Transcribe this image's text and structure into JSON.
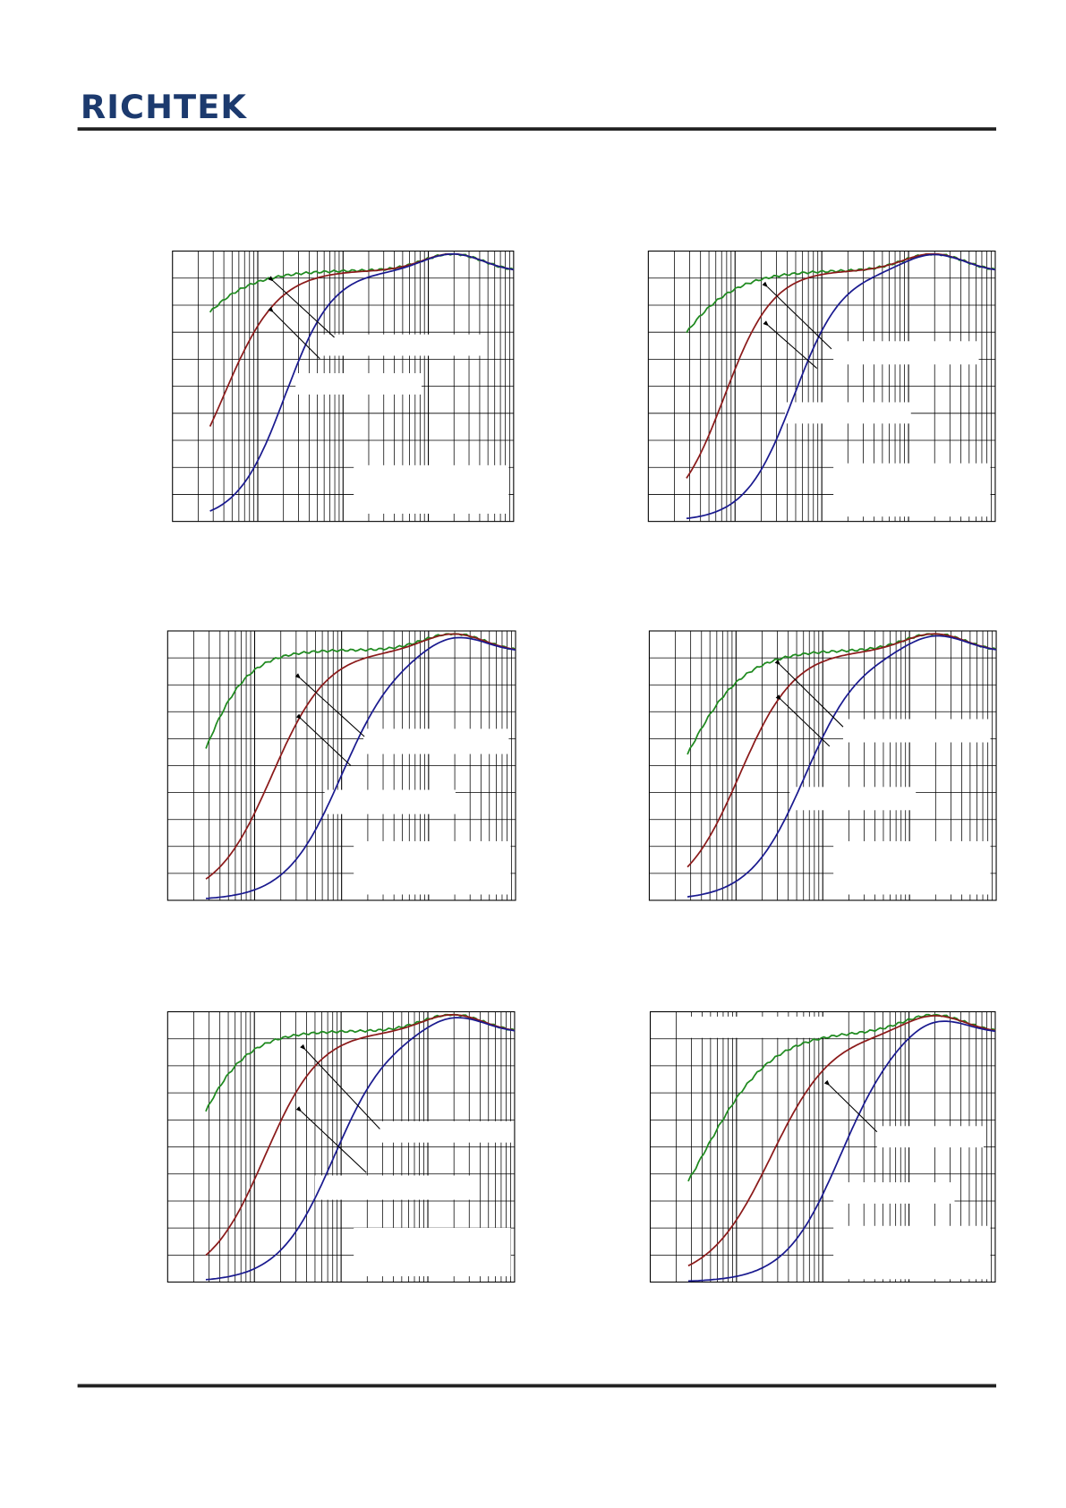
{
  "header": {
    "logo": "RICHTEK"
  }
}
